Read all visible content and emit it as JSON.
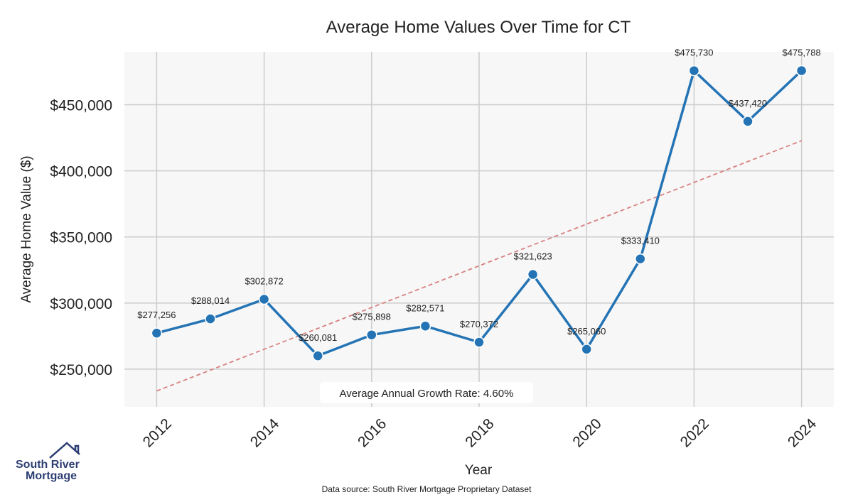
{
  "chart_data": {
    "type": "line",
    "title": "Average Home Values Over Time for CT",
    "xlabel": "Year",
    "ylabel": "Average Home Value ($)",
    "x": [
      2012,
      2013,
      2014,
      2015,
      2016,
      2017,
      2018,
      2019,
      2020,
      2021,
      2022,
      2023,
      2024
    ],
    "values": [
      277256,
      288014,
      302872,
      260081,
      275898,
      282571,
      270372,
      321623,
      265060,
      333410,
      475730,
      437420,
      475788
    ],
    "data_labels": [
      "$277,256",
      "$288,014",
      "$302,872",
      "$260,081",
      "$275,898",
      "$282,571",
      "$270,372",
      "$321,623",
      "$265,060",
      "$333,410",
      "$475,730",
      "$437,420",
      "$475,788"
    ],
    "xticks": [
      "2012",
      "2014",
      "2016",
      "2018",
      "2020",
      "2022",
      "2024"
    ],
    "xtick_values": [
      2012,
      2014,
      2016,
      2018,
      2020,
      2022,
      2024
    ],
    "yticks": [
      "$250,000",
      "$300,000",
      "$350,000",
      "$400,000",
      "$450,000"
    ],
    "ytick_values": [
      250000,
      300000,
      350000,
      400000,
      450000
    ],
    "xlim": [
      2011.4,
      2024.6
    ],
    "ylim": [
      221500,
      490000
    ],
    "trend": {
      "start_value": 233500,
      "end_value": 422800
    },
    "annotation": "Average Annual Growth Rate: 4.60%",
    "grid": true,
    "colors": {
      "line": "#2474b5",
      "trend": "#d98080",
      "background": "#f7f7f7",
      "grid": "#cccccc"
    }
  },
  "footer": {
    "source": "Data source: South River Mortgage Proprietary Dataset"
  },
  "logo": {
    "line1": "South River",
    "line2": "Mortgage",
    "color": "#2d3e73"
  }
}
